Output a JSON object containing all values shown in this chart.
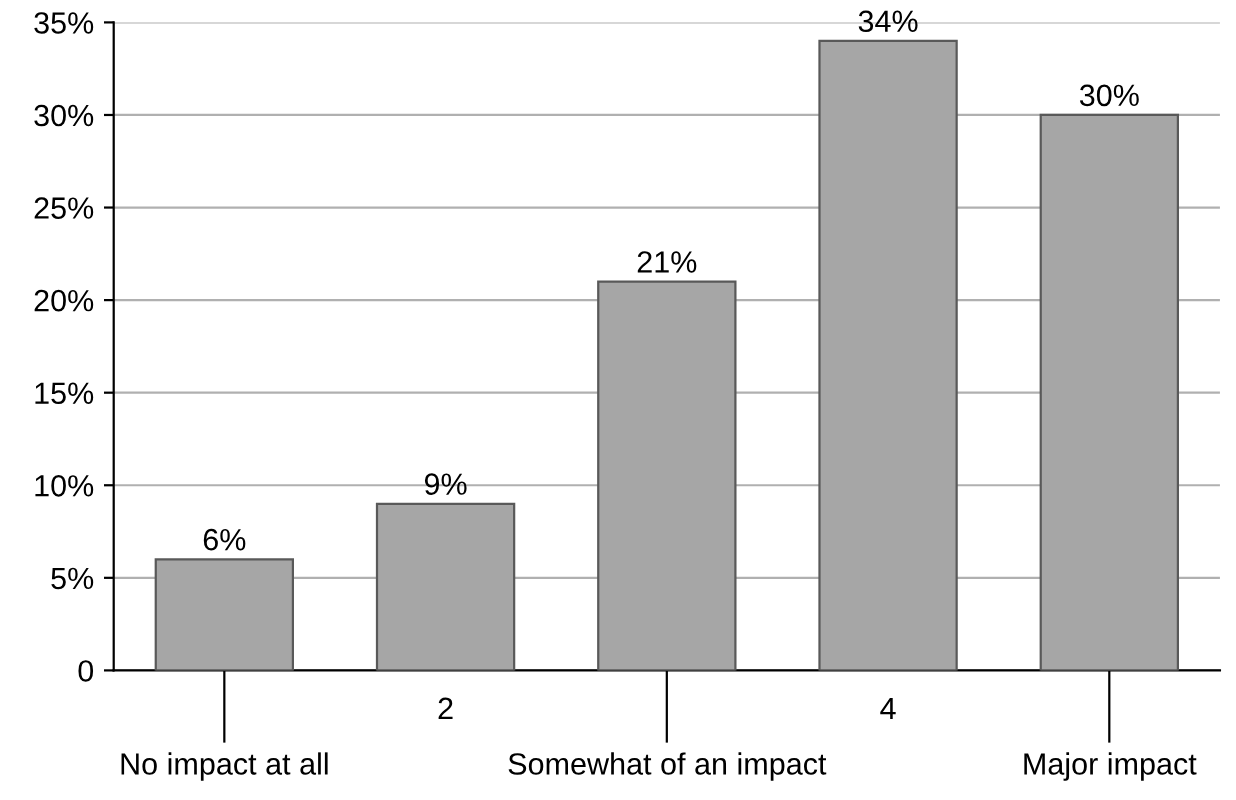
{
  "chart_data": {
    "type": "bar",
    "categories": [
      "No impact at all",
      "2",
      "Somewhat of an impact",
      "4",
      "Major impact"
    ],
    "values": [
      6,
      9,
      21,
      34,
      30
    ],
    "color": "#a6a6a6",
    "value_labels": [
      "6%",
      "9%",
      "21%",
      "34%",
      "30%"
    ],
    "ylim": [
      0,
      35
    ],
    "yticks": [
      0,
      {
        "value": 5,
        "label": "5%"
      },
      {
        "value": 10,
        "label": "10%"
      },
      {
        "value": 15,
        "label": "15%"
      },
      {
        "value": 20,
        "label": "20%"
      },
      {
        "value": 25,
        "label": "25%"
      },
      {
        "value": 30,
        "label": "30%"
      },
      {
        "value": 35,
        "label": "35%"
      }
    ],
    "grid": "y"
  }
}
